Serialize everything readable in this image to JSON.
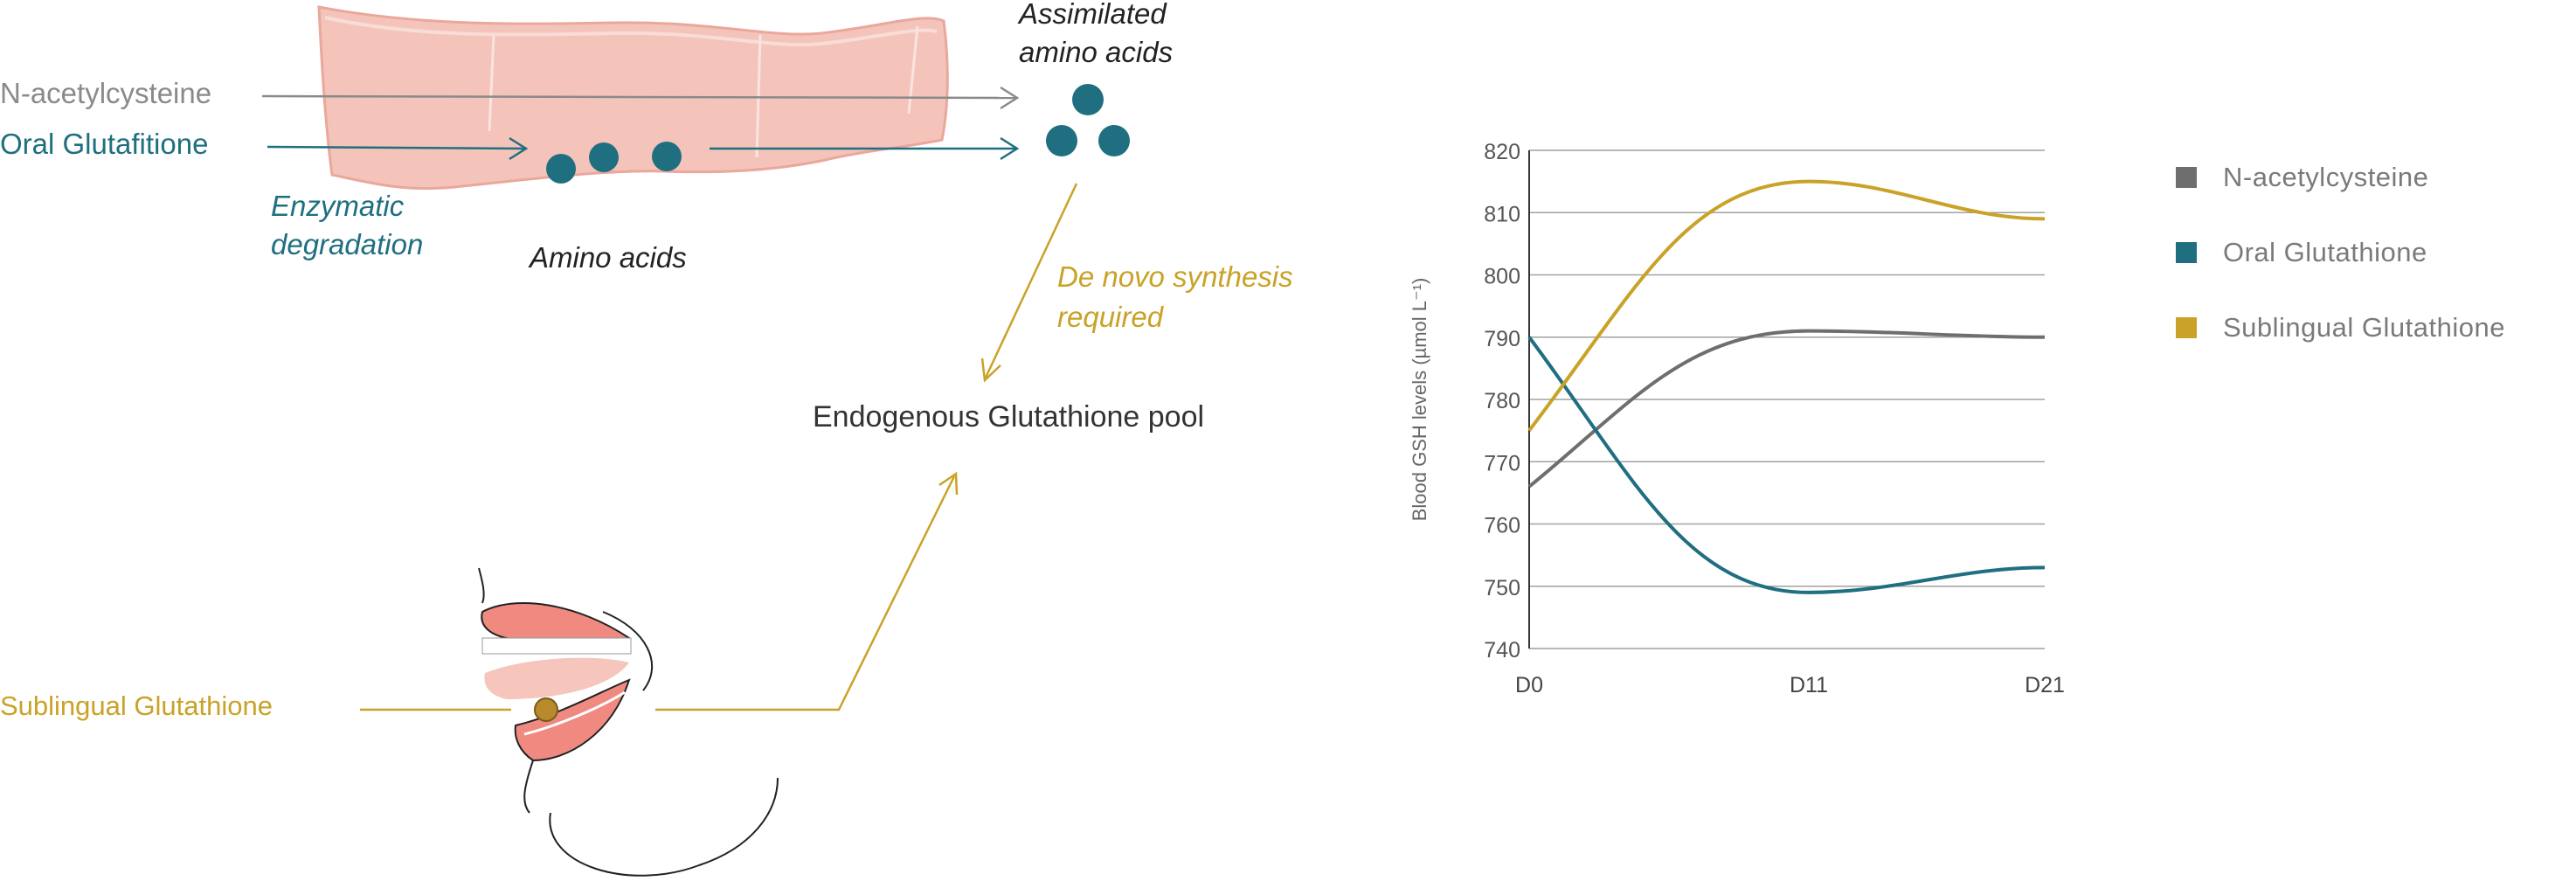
{
  "diagram": {
    "gut_inputs": {
      "nac": "N-acetylcysteine",
      "oral_gsh": "Oral Glutafitione"
    },
    "enzymatic_degradation": [
      "Enzymatic",
      "degradation"
    ],
    "amino_acids": "Amino acids",
    "assimilated": [
      "Assimilated",
      "amino acids"
    ],
    "de_novo": [
      "De novo synthesis",
      "required"
    ],
    "pool": "Endogenous Glutathione pool",
    "sublingual": "Sublingual Glutathione",
    "colors": {
      "gray": "#8a8a8a",
      "teal": "#1f6f80",
      "gold": "#c9a227",
      "gut_fill": "#f4c4bb",
      "gut_edge": "#eaa79c",
      "lip": "#f08a80"
    }
  },
  "chart_data": {
    "type": "line",
    "x": [
      "D0",
      "D11",
      "D21"
    ],
    "ylabel": "Blood GSH levels (µmol L⁻¹)",
    "ylim": [
      740,
      820
    ],
    "yticks": [
      740,
      750,
      760,
      770,
      780,
      790,
      800,
      810,
      820
    ],
    "grid": true,
    "legend_position": "right",
    "series": [
      {
        "name": "N-acetylcysteine",
        "color": "#6e6e6e",
        "values": [
          766,
          791,
          790
        ]
      },
      {
        "name": "Oral Glutathione",
        "color": "#1f6f80",
        "values": [
          790,
          749,
          753
        ]
      },
      {
        "name": "Sublingual Glutathione",
        "color": "#c9a227",
        "values": [
          775,
          815,
          809
        ]
      }
    ]
  }
}
